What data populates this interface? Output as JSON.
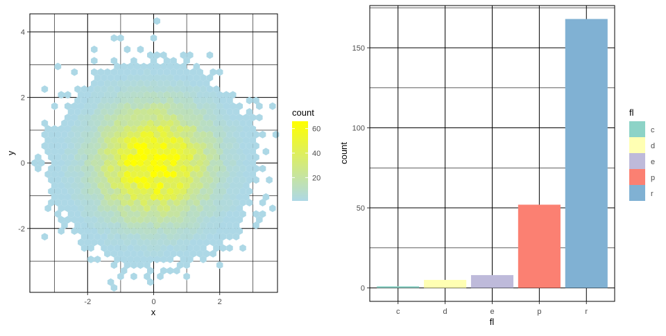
{
  "chart_data": [
    {
      "type": "hexbin",
      "xlabel": "x",
      "ylabel": "y",
      "xlim": [
        -3.75,
        3.75
      ],
      "ylim": [
        -3.95,
        4.55
      ],
      "xticks": [
        "-2",
        "0",
        "2"
      ],
      "xtick_values": [
        -2,
        0,
        2
      ],
      "yticks": [
        "-2",
        "0",
        "2",
        "4"
      ],
      "ytick_values": [
        -2,
        0,
        2,
        4
      ],
      "grid": true,
      "legend": {
        "title": "count",
        "position": "right",
        "labels": [
          "20",
          "40",
          "60"
        ],
        "label_values": [
          20,
          40,
          60
        ],
        "range": [
          1,
          66
        ],
        "colors": {
          "low": "#add8e6",
          "high": "#ffff00"
        }
      },
      "distribution": {
        "center": [
          0,
          0
        ],
        "sd": 1,
        "peak_count": 66,
        "shape": "bivariate normal"
      }
    },
    {
      "type": "bar",
      "xlabel": "fl",
      "ylabel": "count",
      "categories": [
        "c",
        "d",
        "e",
        "p",
        "r"
      ],
      "values": [
        1,
        5,
        8,
        52,
        168
      ],
      "colors": [
        "#8dd3c7",
        "#ffffb3",
        "#bebada",
        "#fb8072",
        "#80b1d3"
      ],
      "ylim": [
        -8.4,
        176.4
      ],
      "yticks": [
        "0",
        "50",
        "100",
        "150"
      ],
      "ytick_values": [
        0,
        50,
        100,
        150
      ],
      "grid": true,
      "legend": {
        "title": "fl",
        "position": "right",
        "entries": [
          "c",
          "d",
          "e",
          "p",
          "r"
        ]
      }
    }
  ]
}
